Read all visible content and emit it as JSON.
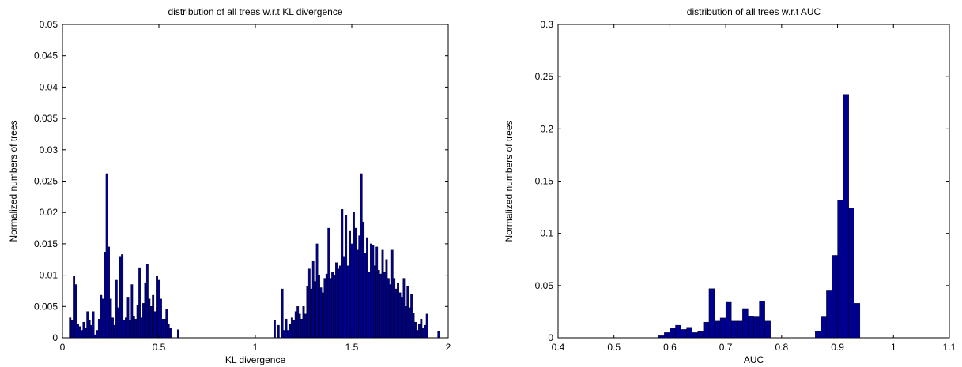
{
  "chart_data": [
    {
      "type": "bar",
      "title": "distribution of all trees w.r.t KL divergence",
      "xlabel": "KL divergence",
      "ylabel": "Normalized numbers of trees",
      "xlim": [
        0,
        2
      ],
      "ylim": [
        0,
        0.05
      ],
      "xticks": [
        "0",
        "0.5",
        "1",
        "1.5",
        "2"
      ],
      "yticks": [
        "0",
        "0.005",
        "0.01",
        "0.015",
        "0.02",
        "0.025",
        "0.03",
        "0.035",
        "0.04",
        "0.045",
        "0.05"
      ],
      "bar_width": 0.01,
      "bar_color": "#00008f",
      "bars": [
        [
          0.04,
          0.0032
        ],
        [
          0.05,
          0.0028
        ],
        [
          0.06,
          0.0098
        ],
        [
          0.07,
          0.0085
        ],
        [
          0.08,
          0.0022
        ],
        [
          0.09,
          0.0018
        ],
        [
          0.1,
          0.0012
        ],
        [
          0.11,
          0.0025
        ],
        [
          0.12,
          0.0015
        ],
        [
          0.13,
          0.0042
        ],
        [
          0.14,
          0.0028
        ],
        [
          0.15,
          0.002
        ],
        [
          0.16,
          0.0042
        ],
        [
          0.17,
          0.0005
        ],
        [
          0.18,
          0.0012
        ],
        [
          0.19,
          0.003
        ],
        [
          0.2,
          0.0068
        ],
        [
          0.21,
          0.0062
        ],
        [
          0.22,
          0.0137
        ],
        [
          0.23,
          0.0262
        ],
        [
          0.24,
          0.0145
        ],
        [
          0.25,
          0.0062
        ],
        [
          0.26,
          0.0032
        ],
        [
          0.27,
          0.002
        ],
        [
          0.28,
          0.0092
        ],
        [
          0.29,
          0.0048
        ],
        [
          0.3,
          0.013
        ],
        [
          0.31,
          0.0133
        ],
        [
          0.32,
          0.0028
        ],
        [
          0.33,
          0.0032
        ],
        [
          0.34,
          0.0065
        ],
        [
          0.35,
          0.0028
        ],
        [
          0.36,
          0.0085
        ],
        [
          0.37,
          0.0035
        ],
        [
          0.38,
          0.003
        ],
        [
          0.39,
          0.0052
        ],
        [
          0.4,
          0.0112
        ],
        [
          0.41,
          0.0032
        ],
        [
          0.42,
          0.0055
        ],
        [
          0.43,
          0.0088
        ],
        [
          0.44,
          0.0118
        ],
        [
          0.45,
          0.0062
        ],
        [
          0.46,
          0.005
        ],
        [
          0.47,
          0.0068
        ],
        [
          0.48,
          0.0042
        ],
        [
          0.49,
          0.0098
        ],
        [
          0.5,
          0.0092
        ],
        [
          0.51,
          0.0062
        ],
        [
          0.52,
          0.003
        ],
        [
          0.53,
          0.003
        ],
        [
          0.54,
          0.0045
        ],
        [
          0.55,
          0.0022
        ],
        [
          0.56,
          0.0015
        ],
        [
          0.6,
          0.0013
        ],
        [
          1.1,
          0.0028
        ],
        [
          1.12,
          0.002
        ],
        [
          1.14,
          0.0078
        ],
        [
          1.15,
          0.0012
        ],
        [
          1.16,
          0.003
        ],
        [
          1.17,
          0.0012
        ],
        [
          1.18,
          0.0022
        ],
        [
          1.19,
          0.0032
        ],
        [
          1.2,
          0.0028
        ],
        [
          1.21,
          0.0042
        ],
        [
          1.22,
          0.005
        ],
        [
          1.23,
          0.0038
        ],
        [
          1.24,
          0.003
        ],
        [
          1.25,
          0.005
        ],
        [
          1.26,
          0.0038
        ],
        [
          1.27,
          0.0082
        ],
        [
          1.28,
          0.011
        ],
        [
          1.29,
          0.0078
        ],
        [
          1.3,
          0.0122
        ],
        [
          1.31,
          0.009
        ],
        [
          1.32,
          0.015
        ],
        [
          1.33,
          0.01
        ],
        [
          1.34,
          0.008
        ],
        [
          1.35,
          0.0072
        ],
        [
          1.36,
          0.0095
        ],
        [
          1.37,
          0.0102
        ],
        [
          1.38,
          0.0175
        ],
        [
          1.39,
          0.0095
        ],
        [
          1.4,
          0.0105
        ],
        [
          1.41,
          0.01
        ],
        [
          1.42,
          0.012
        ],
        [
          1.43,
          0.011
        ],
        [
          1.44,
          0.0115
        ],
        [
          1.45,
          0.0205
        ],
        [
          1.46,
          0.013
        ],
        [
          1.47,
          0.0195
        ],
        [
          1.48,
          0.0115
        ],
        [
          1.49,
          0.017
        ],
        [
          1.5,
          0.015
        ],
        [
          1.51,
          0.02
        ],
        [
          1.52,
          0.0175
        ],
        [
          1.53,
          0.014
        ],
        [
          1.54,
          0.0163
        ],
        [
          1.55,
          0.0262
        ],
        [
          1.56,
          0.0185
        ],
        [
          1.57,
          0.0135
        ],
        [
          1.58,
          0.016
        ],
        [
          1.59,
          0.0105
        ],
        [
          1.6,
          0.015
        ],
        [
          1.61,
          0.0148
        ],
        [
          1.62,
          0.0115
        ],
        [
          1.63,
          0.0145
        ],
        [
          1.64,
          0.0108
        ],
        [
          1.65,
          0.0102
        ],
        [
          1.66,
          0.014
        ],
        [
          1.67,
          0.0105
        ],
        [
          1.68,
          0.0125
        ],
        [
          1.69,
          0.0095
        ],
        [
          1.7,
          0.0085
        ],
        [
          1.71,
          0.014
        ],
        [
          1.72,
          0.0095
        ],
        [
          1.73,
          0.0078
        ],
        [
          1.74,
          0.0088
        ],
        [
          1.75,
          0.0072
        ],
        [
          1.76,
          0.0065
        ],
        [
          1.77,
          0.0095
        ],
        [
          1.78,
          0.005
        ],
        [
          1.79,
          0.0082
        ],
        [
          1.8,
          0.0048
        ],
        [
          1.81,
          0.007
        ],
        [
          1.82,
          0.004
        ],
        [
          1.83,
          0.0025
        ],
        [
          1.84,
          0.0012
        ],
        [
          1.85,
          0.0022
        ],
        [
          1.86,
          0.003
        ],
        [
          1.87,
          0.0015
        ],
        [
          1.88,
          0.002
        ],
        [
          1.89,
          0.0038
        ],
        [
          1.95,
          0.001
        ]
      ]
    },
    {
      "type": "bar",
      "title": "distribution of all trees w.r.t AUC",
      "xlabel": "AUC",
      "ylabel": "Normalized numbers of trees",
      "xlim": [
        0.4,
        1.1
      ],
      "ylim": [
        0,
        0.3
      ],
      "xticks": [
        "0.4",
        "0.5",
        "0.6",
        "0.7",
        "0.8",
        "0.9",
        "1",
        "1.1"
      ],
      "yticks": [
        "0",
        "0.05",
        "0.1",
        "0.15",
        "0.2",
        "0.25",
        "0.3"
      ],
      "bar_width": 0.01,
      "bar_color": "#00008f",
      "bars": [
        [
          0.585,
          0.002
        ],
        [
          0.595,
          0.005
        ],
        [
          0.605,
          0.009
        ],
        [
          0.615,
          0.012
        ],
        [
          0.625,
          0.008
        ],
        [
          0.635,
          0.01
        ],
        [
          0.645,
          0.005
        ],
        [
          0.655,
          0.006
        ],
        [
          0.665,
          0.015
        ],
        [
          0.675,
          0.047
        ],
        [
          0.685,
          0.016
        ],
        [
          0.695,
          0.019
        ],
        [
          0.705,
          0.034
        ],
        [
          0.715,
          0.016
        ],
        [
          0.725,
          0.016
        ],
        [
          0.735,
          0.028
        ],
        [
          0.745,
          0.021
        ],
        [
          0.755,
          0.02
        ],
        [
          0.765,
          0.035
        ],
        [
          0.775,
          0.016
        ],
        [
          0.865,
          0.006
        ],
        [
          0.875,
          0.02
        ],
        [
          0.885,
          0.045
        ],
        [
          0.895,
          0.079
        ],
        [
          0.905,
          0.132
        ],
        [
          0.915,
          0.233
        ],
        [
          0.925,
          0.124
        ],
        [
          0.935,
          0.033
        ]
      ]
    }
  ]
}
